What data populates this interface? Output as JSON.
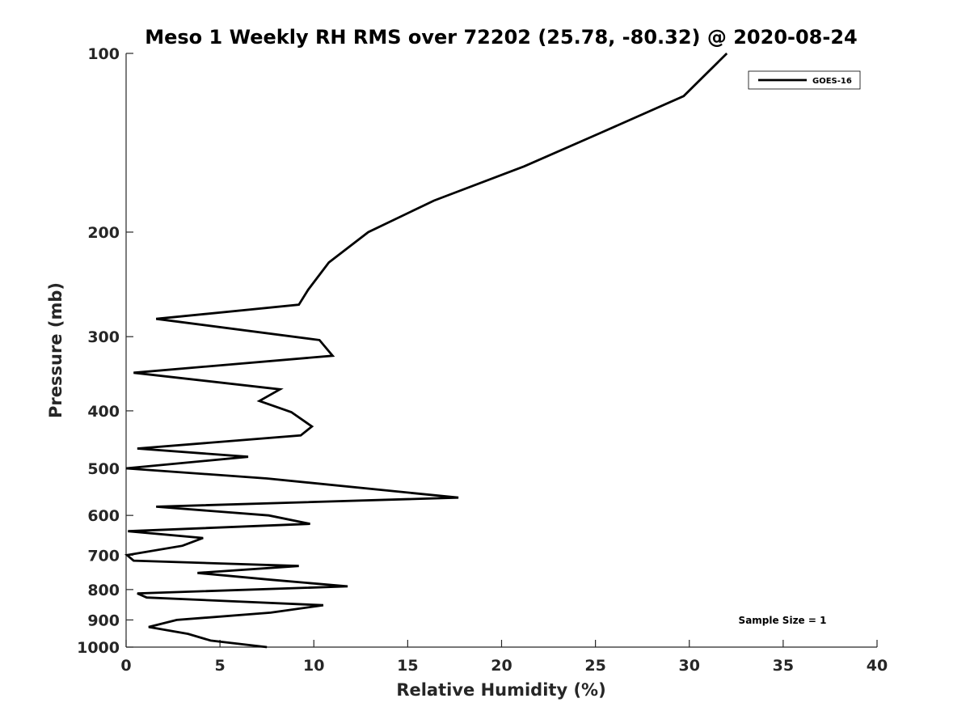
{
  "chart_data": {
    "type": "line",
    "title": "Meso 1 Weekly RH RMS over 72202 (25.78, -80.32) @ 2020-08-24",
    "xlabel": "Relative Humidity (%)",
    "ylabel": "Pressure (mb)",
    "xlim": [
      0,
      40
    ],
    "ylim": [
      1000,
      100
    ],
    "yscale": "log",
    "xticks": [
      0,
      5,
      10,
      15,
      20,
      25,
      30,
      35,
      40
    ],
    "xtick_labels": [
      "0",
      "5",
      "10",
      "15",
      "20",
      "25",
      "30",
      "35",
      "40"
    ],
    "yticks": [
      100,
      200,
      300,
      400,
      500,
      600,
      700,
      800,
      900,
      1000
    ],
    "ytick_labels": [
      "100",
      "200",
      "300",
      "400",
      "500",
      "600",
      "700",
      "800",
      "900",
      "1000"
    ],
    "legend": {
      "location": "top-right",
      "entries": [
        "GOES-16"
      ]
    },
    "annotation": "Sample Size = 1",
    "series": [
      {
        "name": "GOES-16",
        "color": "#000000",
        "points": [
          [
            7.5,
            1000
          ],
          [
            4.5,
            975
          ],
          [
            3.3,
            950
          ],
          [
            1.2,
            925
          ],
          [
            2.7,
            900
          ],
          [
            7.7,
            875
          ],
          [
            10.5,
            850
          ],
          [
            1.1,
            825
          ],
          [
            0.6,
            812
          ],
          [
            11.8,
            790
          ],
          [
            7.7,
            770
          ],
          [
            3.8,
            750
          ],
          [
            9.2,
            730
          ],
          [
            0.4,
            715
          ],
          [
            0.05,
            700
          ],
          [
            3.0,
            675
          ],
          [
            4.1,
            655
          ],
          [
            0.1,
            638
          ],
          [
            9.8,
            620
          ],
          [
            7.6,
            600
          ],
          [
            1.6,
            580
          ],
          [
            17.7,
            560
          ],
          [
            7.5,
            520
          ],
          [
            0.0,
            500
          ],
          [
            6.5,
            478
          ],
          [
            0.6,
            463
          ],
          [
            9.3,
            440
          ],
          [
            9.9,
            425
          ],
          [
            8.8,
            402
          ],
          [
            7.1,
            385
          ],
          [
            8.2,
            368
          ],
          [
            0.4,
            345
          ],
          [
            11.0,
            323
          ],
          [
            10.3,
            304
          ],
          [
            1.6,
            280
          ],
          [
            9.2,
            265
          ],
          [
            9.7,
            250
          ],
          [
            10.8,
            225
          ],
          [
            12.9,
            200
          ],
          [
            16.4,
            177
          ],
          [
            21.2,
            155
          ],
          [
            25.3,
            136
          ],
          [
            29.7,
            118
          ],
          [
            32.0,
            100
          ]
        ]
      }
    ]
  }
}
